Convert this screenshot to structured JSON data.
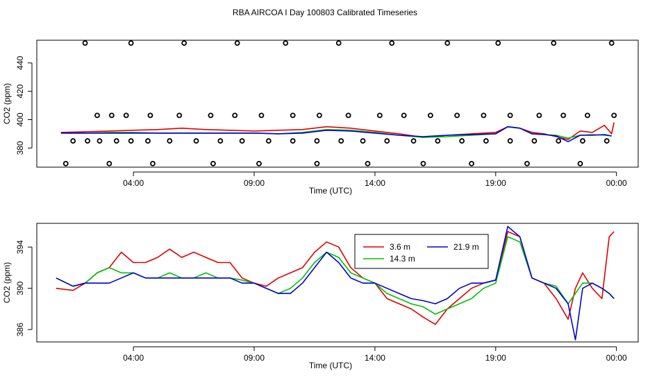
{
  "figure": {
    "title": "RBA AIRCOA I  Day 100803  Calibrated Timeseries"
  },
  "colors": {
    "red": "#e00000",
    "green": "#00c000",
    "blue": "#0000d0",
    "axis": "#000000"
  },
  "chart_data": [
    {
      "type": "line",
      "title": "",
      "xlabel": "Time (UTC)",
      "ylabel": "CO2 (ppm)",
      "xlim": [
        0.0,
        24.9
      ],
      "ylim": [
        366.5,
        456
      ],
      "x_ticks": [
        {
          "v": 4.0,
          "label": "04:00"
        },
        {
          "v": 9.0,
          "label": "09:00"
        },
        {
          "v": 14.0,
          "label": "14:00"
        },
        {
          "v": 19.0,
          "label": "19:00"
        },
        {
          "v": 24.0,
          "label": "00:00"
        }
      ],
      "y_ticks": [
        380,
        400,
        420,
        440
      ],
      "series": [
        {
          "name": "3.6 m",
          "color": "#e00000",
          "x": [
            1.0,
            2.0,
            3.0,
            4.0,
            5.0,
            6.0,
            7.0,
            8.0,
            9.0,
            10.0,
            11.0,
            12.0,
            13.0,
            14.0,
            15.0,
            16.0,
            17.0,
            18.0,
            19.0,
            19.5,
            20.0,
            20.5,
            21.0,
            21.5,
            22.0,
            22.5,
            23.0,
            23.5,
            23.8,
            23.9
          ],
          "values": [
            391,
            391.5,
            392,
            392.5,
            393,
            394,
            393,
            392.5,
            392,
            392.5,
            393,
            395,
            394,
            392,
            390,
            387.5,
            389,
            390,
            391,
            395,
            394,
            391,
            390,
            388,
            386,
            392,
            391,
            396,
            390,
            398
          ]
        },
        {
          "name": "14.3 m",
          "color": "#00c000",
          "x": [
            1.0,
            2.0,
            3.0,
            4.0,
            5.0,
            6.0,
            7.0,
            8.0,
            9.0,
            10.0,
            11.0,
            12.0,
            13.0,
            14.0,
            15.0,
            16.0,
            17.0,
            18.0,
            19.0,
            19.5,
            20.0,
            20.5,
            21.0,
            21.5,
            22.0,
            22.5,
            23.0,
            23.5,
            23.8
          ],
          "values": [
            390.5,
            390.5,
            391,
            391,
            390.5,
            390.5,
            390.5,
            390.5,
            390.5,
            390,
            391,
            393,
            392.5,
            391,
            389,
            387.5,
            388,
            389,
            390,
            395,
            394,
            390,
            389.5,
            389,
            387,
            389,
            389.5,
            389,
            388.5
          ]
        },
        {
          "name": "21.9 m",
          "color": "#0000d0",
          "x": [
            1.0,
            2.0,
            3.0,
            4.0,
            5.0,
            6.0,
            7.0,
            8.0,
            9.0,
            10.0,
            11.0,
            12.0,
            13.0,
            14.0,
            15.0,
            16.0,
            17.0,
            18.0,
            19.0,
            19.5,
            20.0,
            20.5,
            21.0,
            21.5,
            22.0,
            22.5,
            23.0,
            23.5,
            23.8
          ],
          "values": [
            390.5,
            390.5,
            390.5,
            390.5,
            390.5,
            390.5,
            390.5,
            390.5,
            390.5,
            390,
            390.5,
            392.5,
            392,
            390.5,
            389,
            388,
            389,
            389.5,
            390,
            395,
            394,
            390,
            389.5,
            388.5,
            384.5,
            389,
            389,
            389.5,
            388.5
          ]
        }
      ],
      "cal_points": {
        "x": [
          1.5,
          2.1,
          2.6,
          3.3,
          3.9,
          4.6,
          5.5,
          6.6,
          7.6,
          8.5,
          9.6,
          10.6,
          11.6,
          12.6,
          13.5,
          14.5,
          15.6,
          16.6,
          17.6,
          18.6,
          19.6,
          20.6,
          21.6,
          22.6,
          23.6,
          2.5,
          3.1,
          3.7,
          4.7,
          5.9,
          7.2,
          8.2,
          9.3,
          10.6,
          11.7,
          12.9,
          14.2,
          15.2,
          16.3,
          17.4,
          18.5,
          19.6,
          20.8,
          21.8,
          22.8,
          23.9,
          1.2,
          2.0,
          3.0,
          3.9,
          4.8,
          6.1,
          7.3,
          8.3,
          9.2,
          10.3,
          11.6,
          12.5,
          13.7,
          14.7,
          16.0,
          17.0,
          18.0,
          19.1,
          20.3,
          21.4,
          22.5,
          23.8
        ],
        "values": [
          385,
          385,
          385,
          385,
          385,
          385,
          385,
          385,
          385,
          385,
          385,
          385,
          385,
          385,
          385,
          385,
          385,
          385,
          385,
          385,
          385,
          385,
          385,
          385,
          385,
          403,
          403,
          403,
          403,
          403,
          403,
          403,
          403,
          403,
          403,
          403,
          403,
          403,
          403,
          403,
          403,
          403,
          403,
          403,
          403,
          403,
          369,
          454,
          369,
          454,
          369,
          454,
          369,
          454,
          369,
          454,
          369,
          454,
          369,
          454,
          369,
          454,
          369,
          454,
          369,
          454,
          369,
          454
        ]
      }
    },
    {
      "type": "line",
      "title": "",
      "xlabel": "Time (UTC)",
      "ylabel": "CO2 (ppm)",
      "xlim": [
        0.0,
        24.9
      ],
      "ylim": [
        384.8,
        396.3
      ],
      "x_ticks": [
        {
          "v": 4.0,
          "label": "04:00"
        },
        {
          "v": 9.0,
          "label": "09:00"
        },
        {
          "v": 14.0,
          "label": "14:00"
        },
        {
          "v": 19.0,
          "label": "19:00"
        },
        {
          "v": 24.0,
          "label": "00:00"
        }
      ],
      "y_ticks": [
        386,
        390,
        394
      ],
      "legend_position": "top-center",
      "series": [
        {
          "name": "3.6 m",
          "color": "#e00000",
          "x": [
            0.8,
            1.5,
            2.0,
            2.5,
            3.0,
            3.5,
            4.0,
            4.5,
            5.0,
            5.5,
            6.0,
            6.5,
            7.0,
            7.5,
            8.0,
            8.5,
            9.0,
            9.5,
            10.0,
            10.5,
            11.0,
            11.5,
            12.0,
            12.5,
            13.0,
            13.5,
            14.0,
            14.5,
            15.0,
            15.5,
            16.0,
            16.5,
            17.0,
            17.5,
            18.0,
            18.5,
            19.0,
            19.5,
            20.0,
            20.5,
            21.0,
            21.5,
            22.0,
            22.3,
            22.6,
            23.0,
            23.4,
            23.7,
            23.9
          ],
          "values": [
            390,
            389.8,
            390.5,
            391.5,
            392,
            393.5,
            392.5,
            392.5,
            393,
            393.8,
            393,
            393.5,
            393,
            392.5,
            392.5,
            391,
            390.5,
            390.2,
            391,
            391.5,
            392,
            393.5,
            394.5,
            394,
            392,
            391,
            390.5,
            389,
            388.5,
            388,
            387.2,
            386.5,
            388,
            389,
            390,
            390.5,
            390.8,
            395.5,
            395,
            391,
            390.5,
            389,
            387,
            390,
            391.5,
            390,
            389,
            395,
            395.5
          ]
        },
        {
          "name": "14.3 m",
          "color": "#00c000",
          "x": [
            0.8,
            1.5,
            2.0,
            2.5,
            3.0,
            3.5,
            4.0,
            4.5,
            5.0,
            5.5,
            6.0,
            6.5,
            7.0,
            7.5,
            8.0,
            8.5,
            9.0,
            9.5,
            10.0,
            10.5,
            11.0,
            11.5,
            12.0,
            12.5,
            13.0,
            13.5,
            14.0,
            14.5,
            15.0,
            15.5,
            16.0,
            16.5,
            17.0,
            17.5,
            18.0,
            18.5,
            19.0,
            19.5,
            20.0,
            20.5,
            21.0,
            21.5,
            22.0,
            22.3,
            22.6,
            23.0,
            23.4,
            23.7,
            23.9
          ],
          "values": [
            391,
            390.2,
            390.5,
            391.5,
            392,
            391.5,
            391.5,
            391,
            391,
            391.5,
            391,
            391,
            391.5,
            391,
            391,
            390.8,
            390.5,
            390,
            389.5,
            390,
            391,
            392.5,
            393.5,
            393,
            391.5,
            391,
            390.5,
            389.5,
            389,
            388.5,
            388.2,
            387.5,
            388,
            388.5,
            389,
            390,
            390.5,
            395,
            394.5,
            391,
            390.5,
            390.2,
            388.5,
            389.5,
            390.5,
            390.5,
            390,
            389.5,
            389
          ]
        },
        {
          "name": "21.9 m",
          "color": "#0000d0",
          "x": [
            0.8,
            1.5,
            2.0,
            2.5,
            3.0,
            3.5,
            4.0,
            4.5,
            5.0,
            5.5,
            6.0,
            6.5,
            7.0,
            7.5,
            8.0,
            8.5,
            9.0,
            9.5,
            10.0,
            10.5,
            11.0,
            11.5,
            12.0,
            12.5,
            13.0,
            13.5,
            14.0,
            14.5,
            15.0,
            15.5,
            16.0,
            16.5,
            17.0,
            17.5,
            18.0,
            18.5,
            19.0,
            19.5,
            20.0,
            20.5,
            21.0,
            21.5,
            22.0,
            22.3,
            22.6,
            23.0,
            23.4,
            23.7,
            23.9
          ],
          "values": [
            391,
            390.2,
            390.5,
            390.5,
            390.5,
            391,
            391.5,
            391,
            391,
            391,
            391,
            391,
            391,
            391,
            391,
            390.5,
            390.5,
            390,
            389.5,
            389.5,
            390.5,
            392,
            393.5,
            392.5,
            391,
            390.5,
            390.5,
            390,
            389.5,
            389,
            388.8,
            388.5,
            389,
            390,
            390.5,
            390.5,
            390.8,
            396,
            395,
            391,
            390.5,
            390,
            388.5,
            385,
            390,
            390.5,
            390,
            389.5,
            389
          ]
        }
      ]
    }
  ]
}
